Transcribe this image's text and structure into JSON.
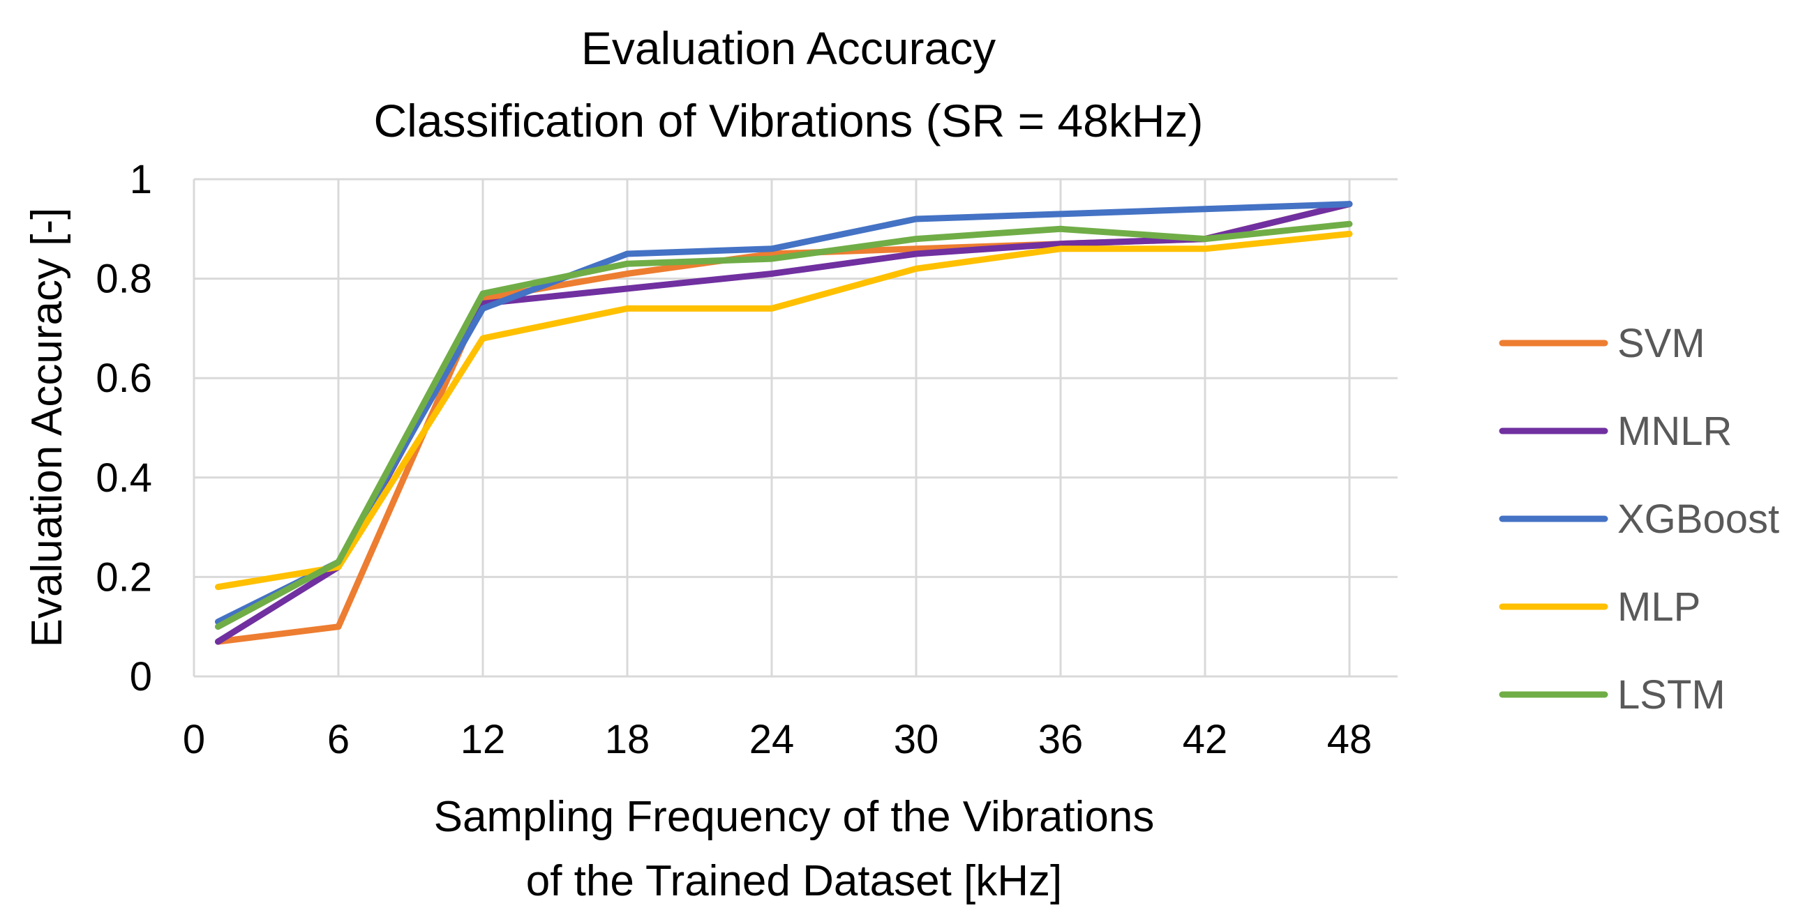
{
  "chart_data": {
    "type": "line",
    "title": "Evaluation Accuracy",
    "subtitle": "Classification of Vibrations (SR = 48kHz)",
    "xlabel_line1": "Sampling Frequency of the Vibrations",
    "xlabel_line2": "of the Trained Dataset [kHz]",
    "ylabel": "Evaluation Accuracy [-]",
    "xlim": [
      0,
      50
    ],
    "ylim": [
      0,
      1
    ],
    "x_ticks": [
      0,
      6,
      12,
      18,
      24,
      30,
      36,
      42,
      48
    ],
    "x_tick_labels": [
      "0",
      "6",
      "12",
      "18",
      "24",
      "30",
      "36",
      "42",
      "48"
    ],
    "y_ticks": [
      0,
      0.2,
      0.4,
      0.6,
      0.8,
      1
    ],
    "y_tick_labels": [
      "0",
      "0.2",
      "0.4",
      "0.6",
      "0.8",
      "1"
    ],
    "grid": true,
    "legend_position": "right",
    "x": [
      1,
      6,
      12,
      18,
      24,
      30,
      36,
      42,
      48
    ],
    "series": [
      {
        "name": "SVM",
        "color": "#ED7D31",
        "values": [
          0.07,
          0.1,
          0.76,
          0.81,
          0.85,
          0.86,
          0.87,
          0.88,
          0.95
        ]
      },
      {
        "name": "MNLR",
        "color": "#7030A0",
        "values": [
          0.07,
          0.22,
          0.75,
          0.78,
          0.81,
          0.85,
          0.87,
          0.88,
          0.95
        ]
      },
      {
        "name": "XGBoost",
        "color": "#4472C4",
        "values": [
          0.11,
          0.23,
          0.74,
          0.85,
          0.86,
          0.92,
          0.93,
          0.94,
          0.95
        ]
      },
      {
        "name": "MLP",
        "color": "#FFC000",
        "values": [
          0.18,
          0.22,
          0.68,
          0.74,
          0.74,
          0.82,
          0.86,
          0.86,
          0.89
        ]
      },
      {
        "name": "LSTM",
        "color": "#70AD47",
        "values": [
          0.1,
          0.23,
          0.77,
          0.83,
          0.84,
          0.88,
          0.9,
          0.88,
          0.91
        ]
      }
    ]
  }
}
